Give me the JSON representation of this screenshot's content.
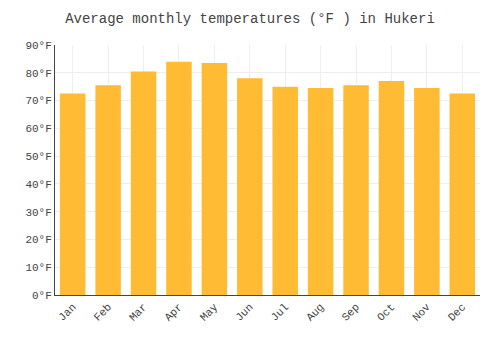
{
  "chart_data": {
    "type": "bar",
    "title": "Average monthly temperatures (°F ) in Hukeri",
    "categories": [
      "Jan",
      "Feb",
      "Mar",
      "Apr",
      "May",
      "Jun",
      "Jul",
      "Aug",
      "Sep",
      "Oct",
      "Nov",
      "Dec"
    ],
    "values": [
      72.5,
      75.5,
      80.5,
      84.0,
      83.5,
      78.0,
      75.0,
      74.5,
      75.5,
      77.0,
      74.5,
      72.5
    ],
    "color": "#FFBB33",
    "ylim": [
      0,
      90
    ],
    "yticks": [
      {
        "value": 0,
        "label": "0°F"
      },
      {
        "value": 10,
        "label": "10°F"
      },
      {
        "value": 20,
        "label": "20°F"
      },
      {
        "value": 30,
        "label": "30°F"
      },
      {
        "value": 40,
        "label": "40°F"
      },
      {
        "value": 50,
        "label": "50°F"
      },
      {
        "value": 60,
        "label": "60°F"
      },
      {
        "value": 70,
        "label": "70°F"
      },
      {
        "value": 80,
        "label": "80°F"
      },
      {
        "value": 90,
        "label": "90°F"
      }
    ],
    "grid": true
  }
}
